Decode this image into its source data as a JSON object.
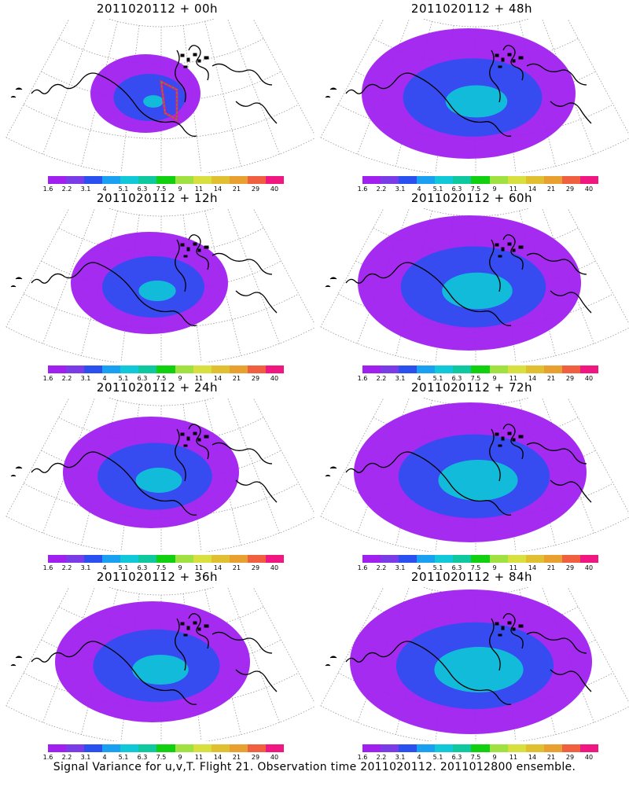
{
  "footer_caption": "Signal Variance for u,v,T. Flight 21. Observation time 2011020112. 2011012800 ensemble.",
  "colorbar": {
    "labels": [
      "1.6",
      "2.2",
      "3.1",
      "4",
      "5.1",
      "6.3",
      "7.5",
      "9",
      "11",
      "14",
      "21",
      "29",
      "40"
    ],
    "colors": [
      "#a020f0",
      "#7a3ce6",
      "#2a50f0",
      "#1aa0f0",
      "#10c8d8",
      "#10c8a0",
      "#10d010",
      "#a0e040",
      "#d8e040",
      "#e0c030",
      "#e8a030",
      "#f06040",
      "#f01880"
    ]
  },
  "panels": [
    {
      "title": "2011020112 + 00h",
      "coverage": 0.25,
      "level": 0.35
    },
    {
      "title": "2011020112 + 48h",
      "coverage": 0.8,
      "level": 0.55
    },
    {
      "title": "2011020112 + 12h",
      "coverage": 0.5,
      "level": 0.45
    },
    {
      "title": "2011020112 + 60h",
      "coverage": 0.85,
      "level": 0.6
    },
    {
      "title": "2011020112 + 24h",
      "coverage": 0.6,
      "level": 0.5
    },
    {
      "title": "2011020112 + 72h",
      "coverage": 0.9,
      "level": 0.65
    },
    {
      "title": "2011020112 + 36h",
      "coverage": 0.7,
      "level": 0.55
    },
    {
      "title": "2011020112 + 84h",
      "coverage": 0.95,
      "level": 0.7
    }
  ]
}
